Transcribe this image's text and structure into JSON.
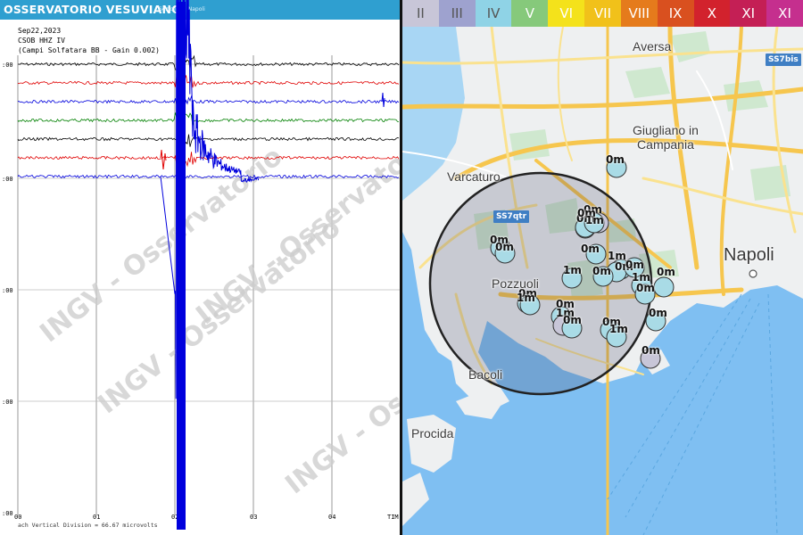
{
  "seismogram": {
    "header_title": "OSSERVATORIO VESUVIANO",
    "header_sub": "Sezione di Napoli",
    "date": "Sep22,2023",
    "station": "CSOB HHZ IV",
    "station_desc": "(Campi Solfatara BB - Gain 0.002)",
    "footer": "ach Vertical Division =    66.67 microvolts",
    "watermark": "INGV - Osservatorio",
    "left_axis_labels": [
      ":00",
      ":00",
      ":00",
      ":00",
      ":00"
    ],
    "bottom_axis_labels": [
      "00",
      "01",
      "02",
      "03",
      "04",
      "TIM"
    ],
    "trace_colors": [
      "#000000",
      "#e00000",
      "#0000dd",
      "#008000",
      "#000000",
      "#e00000",
      "#0000dd"
    ]
  },
  "map": {
    "intensity_scale": [
      {
        "label": "II",
        "color": "#c8c6d8"
      },
      {
        "label": "III",
        "color": "#9ea2cf"
      },
      {
        "label": "IV",
        "color": "#8fd3e6"
      },
      {
        "label": "V",
        "color": "#86c97b"
      },
      {
        "label": "VI",
        "color": "#f4e21b"
      },
      {
        "label": "VII",
        "color": "#f1c11a"
      },
      {
        "label": "VIII",
        "color": "#e57b1c"
      },
      {
        "label": "IX",
        "color": "#d9501f"
      },
      {
        "label": "X",
        "color": "#d2222d"
      },
      {
        "label": "XI",
        "color": "#c41f55"
      },
      {
        "label": "XI",
        "color": "#c52f8e"
      }
    ],
    "places": {
      "aversa": "Aversa",
      "giugliano": "Giugliano in\nCampania",
      "varcaturo": "Varcaturo",
      "napoli": "Napoli",
      "pozzuoli": "Pozzuoli",
      "bacoli": "Bacoli",
      "procida": "Procida"
    },
    "station_tags": {
      "ss7bis": "SS7bis",
      "ss7qtr": "SS7qtr"
    },
    "quake_labels": [
      "0m",
      "0m",
      "0m",
      "0m",
      "0m",
      "1m",
      "0m",
      "1m",
      "0m",
      "1m",
      "0m",
      "0m",
      "0m",
      "1m",
      "0m",
      "1m",
      "0m",
      "0m",
      "1m",
      "0m",
      "0m",
      "0m",
      "1m",
      "0m",
      "0m"
    ]
  }
}
